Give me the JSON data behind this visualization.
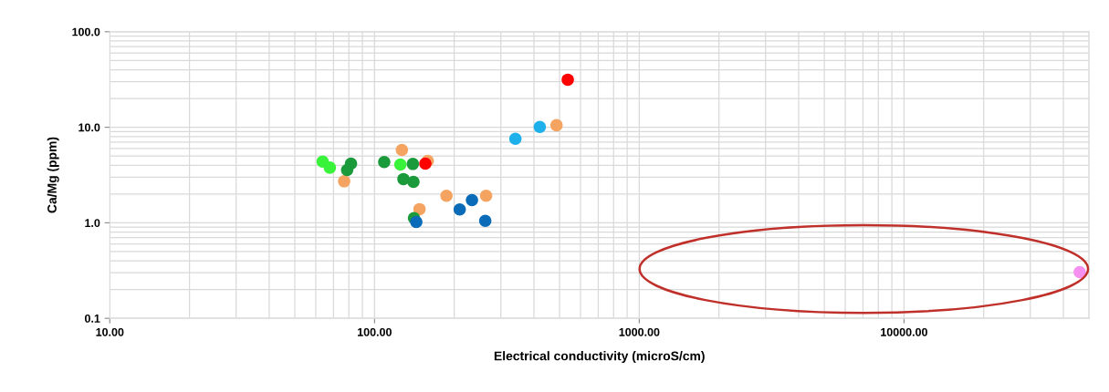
{
  "chart_data": {
    "type": "scatter",
    "xlabel": "Electrical conductivity (microS/cm)",
    "ylabel": "Ca/Mg (ppm)",
    "log": "xy",
    "grid": true,
    "marker": "circle",
    "xlim": [
      10,
      50000
    ],
    "ylim": [
      0.1,
      100
    ],
    "xticks": [
      {
        "value": 10,
        "label": "10.00"
      },
      {
        "value": 100,
        "label": "100.00"
      },
      {
        "value": 1000,
        "label": "1000.00"
      },
      {
        "value": 10000,
        "label": "10000.00"
      }
    ],
    "yticks": [
      {
        "value": 0.1,
        "label": "0.1"
      },
      {
        "value": 1,
        "label": "1.0"
      },
      {
        "value": 10,
        "label": "10.0"
      },
      {
        "value": 100,
        "label": "100.0"
      }
    ],
    "series": [
      {
        "color": "#f4a460",
        "x": [
          76.8,
          126.9,
          158.9,
          147.9,
          187,
          264,
          487
        ],
        "values": [
          2.72,
          5.78,
          4.44,
          1.39,
          1.92,
          1.92,
          10.5
        ]
      },
      {
        "color": "#39f23a",
        "x": [
          63.7,
          67.8,
          125.2
        ],
        "values": [
          4.38,
          3.78,
          4.07
        ]
      },
      {
        "color": "#1a9a3a",
        "x": [
          81.5,
          78.8,
          108.8,
          139.6,
          128.6,
          140.3,
          141
        ],
        "values": [
          4.16,
          3.57,
          4.32,
          4.13,
          2.87,
          2.68,
          1.12
        ]
      },
      {
        "color": "#ff0000",
        "x": [
          155.6,
          537
        ],
        "values": [
          4.16,
          31.5
        ]
      },
      {
        "color": "#0a6cb8",
        "x": [
          143.8,
          209.8,
          233.4,
          262
        ],
        "values": [
          1.02,
          1.38,
          1.73,
          1.05
        ]
      },
      {
        "color": "#1eb0ea",
        "x": [
          340.5,
          421
        ],
        "values": [
          7.57,
          10.07
        ]
      },
      {
        "color": "#f590f0",
        "x": [
          46100
        ],
        "values": [
          0.304
        ]
      }
    ]
  }
}
